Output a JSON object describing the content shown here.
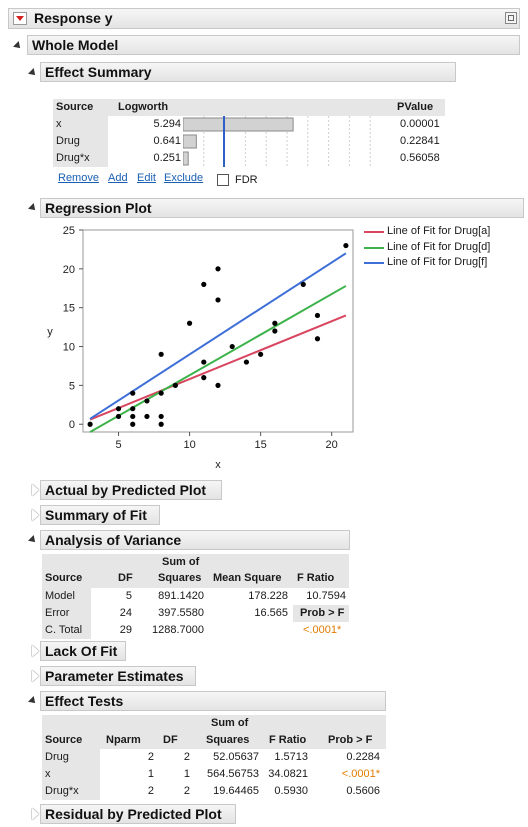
{
  "report": {
    "title": "Response y"
  },
  "whole_model": {
    "title": "Whole Model"
  },
  "effect_summary": {
    "title": "Effect Summary",
    "headers": [
      "Source",
      "Logworth",
      "PValue"
    ],
    "rows": [
      {
        "source": "x",
        "logworth": "5.294",
        "pvalue": "0.00001",
        "lw": 5.294
      },
      {
        "source": "Drug",
        "logworth": "0.641",
        "pvalue": "0.22841",
        "lw": 0.641
      },
      {
        "source": "Drug*x",
        "logworth": "0.251",
        "pvalue": "0.56058",
        "lw": 0.251
      }
    ],
    "buttons": {
      "remove": "Remove",
      "add": "Add",
      "edit": "Edit",
      "exclude": "Exclude"
    },
    "fdr_label": "FDR"
  },
  "regression_plot": {
    "title": "Regression Plot",
    "legend": [
      "Line of Fit for Drug[a]",
      "Line of Fit for Drug[d]",
      "Line of Fit for Drug[f]"
    ]
  },
  "chart_data": {
    "type": "scatter",
    "xlabel": "x",
    "ylabel": "y",
    "xlim": [
      2.5,
      21.5
    ],
    "ylim": [
      -1,
      25
    ],
    "xticks": [
      5,
      10,
      15,
      20
    ],
    "yticks": [
      0,
      5,
      10,
      15,
      20,
      25
    ],
    "points": [
      [
        3,
        0
      ],
      [
        5,
        1
      ],
      [
        5,
        2
      ],
      [
        6,
        0
      ],
      [
        6,
        1
      ],
      [
        6,
        2
      ],
      [
        6,
        4
      ],
      [
        7,
        1
      ],
      [
        7,
        3
      ],
      [
        8,
        0
      ],
      [
        8,
        1
      ],
      [
        8,
        4
      ],
      [
        8,
        9
      ],
      [
        9,
        5
      ],
      [
        10,
        13
      ],
      [
        11,
        6
      ],
      [
        11,
        8
      ],
      [
        11,
        18
      ],
      [
        12,
        5
      ],
      [
        12,
        16
      ],
      [
        12,
        20
      ],
      [
        13,
        10
      ],
      [
        14,
        8
      ],
      [
        15,
        9
      ],
      [
        16,
        12
      ],
      [
        16,
        13
      ],
      [
        18,
        18
      ],
      [
        19,
        11
      ],
      [
        19,
        14
      ],
      [
        21,
        23
      ]
    ],
    "series": [
      {
        "name": "Line of Fit for Drug[a]",
        "color": "#d9455f",
        "x": [
          3,
          21
        ],
        "y": [
          0.6,
          14.0
        ]
      },
      {
        "name": "Line of Fit for Drug[d]",
        "color": "#3cb34a",
        "x": [
          3,
          21
        ],
        "y": [
          -1.0,
          17.8
        ]
      },
      {
        "name": "Line of Fit for Drug[f]",
        "color": "#3e6fd8",
        "x": [
          3,
          21
        ],
        "y": [
          0.7,
          22.0
        ]
      }
    ]
  },
  "sections": {
    "actual_by_predicted": "Actual by Predicted Plot",
    "summary_of_fit": "Summary of Fit",
    "anova": "Analysis of Variance",
    "lack_of_fit": "Lack Of Fit",
    "parameter_estimates": "Parameter Estimates",
    "effect_tests": "Effect Tests",
    "residual_by_predicted": "Residual by Predicted Plot"
  },
  "anova": {
    "headers": {
      "source": "Source",
      "df": "DF",
      "ss_top": "Sum of",
      "ss_bottom": "Squares",
      "ms": "Mean Square",
      "f": "F Ratio",
      "prob": "Prob > F"
    },
    "rows": [
      {
        "source": "Model",
        "df": "5",
        "ss": "891.1420",
        "ms": "178.228",
        "f": "10.7594"
      },
      {
        "source": "Error",
        "df": "24",
        "ss": "397.5580",
        "ms": "16.565"
      },
      {
        "source": "C. Total",
        "df": "29",
        "ss": "1288.7000"
      }
    ],
    "prob_value": "<.0001*"
  },
  "effect_tests": {
    "headers": {
      "source": "Source",
      "nparm": "Nparm",
      "df": "DF",
      "ss_top": "Sum of",
      "ss_bottom": "Squares",
      "f": "F Ratio",
      "prob": "Prob > F"
    },
    "rows": [
      {
        "source": "Drug",
        "nparm": "2",
        "df": "2",
        "ss": "52.05637",
        "f": "1.5713",
        "prob": "0.2284"
      },
      {
        "source": "x",
        "nparm": "1",
        "df": "1",
        "ss": "564.56753",
        "f": "34.0821",
        "prob": "<.0001*"
      },
      {
        "source": "Drug*x",
        "nparm": "2",
        "df": "2",
        "ss": "19.64465",
        "f": "0.5930",
        "prob": "0.5606"
      }
    ]
  }
}
